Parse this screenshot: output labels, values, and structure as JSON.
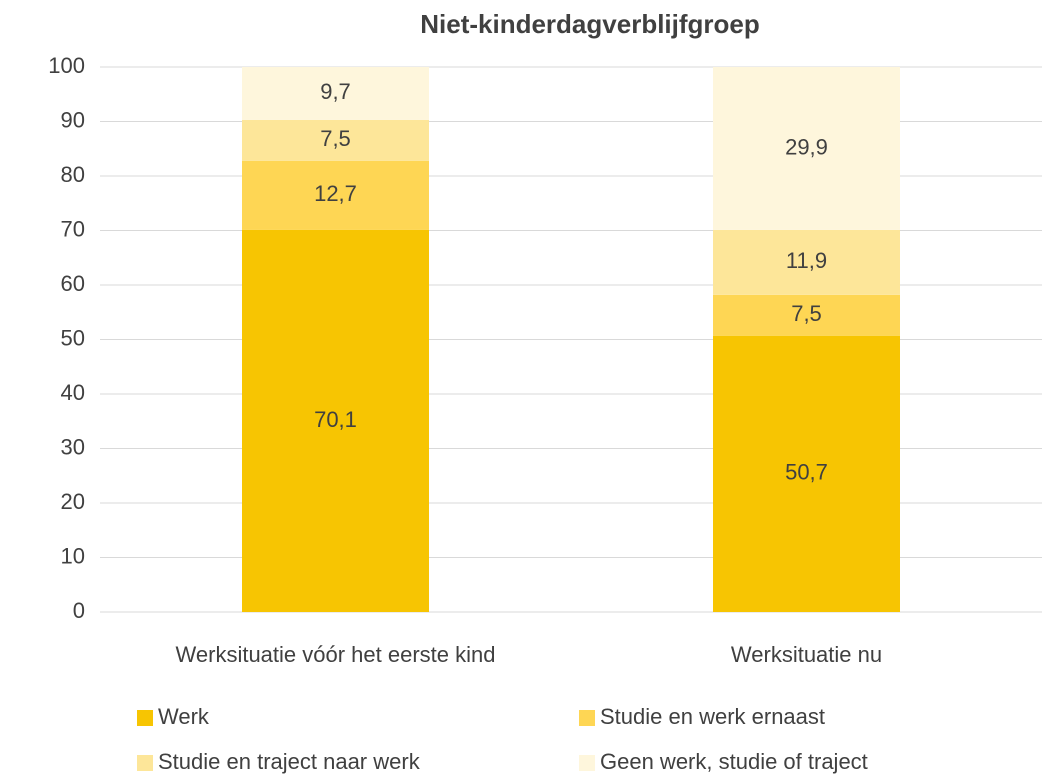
{
  "chart_data": {
    "type": "stacked_bar",
    "title": "Niet-kinderdagverblijfgroep",
    "categories": [
      "Werksituatie vóór het eerste kind",
      "Werksituatie nu"
    ],
    "series": [
      {
        "name": "Werk",
        "color": "#f7c502",
        "values": [
          70.1,
          50.7
        ],
        "value_labels": [
          "70,1",
          "50,7"
        ]
      },
      {
        "name": "Studie en werk ernaast",
        "color": "#fed654",
        "values": [
          12.7,
          7.5
        ],
        "value_labels": [
          "12,7",
          "7,5"
        ]
      },
      {
        "name": "Studie en traject naar werk",
        "color": "#fde699",
        "values": [
          7.5,
          11.9
        ],
        "value_labels": [
          "7,5",
          "11,9"
        ]
      },
      {
        "name": "Geen werk, studie of traject",
        "color": "#fef6dc",
        "values": [
          9.7,
          29.9
        ],
        "value_labels": [
          "9,7",
          "29,9"
        ]
      }
    ],
    "ylim": [
      0,
      100
    ],
    "yticks": [
      0,
      10,
      20,
      30,
      40,
      50,
      60,
      70,
      80,
      90,
      100
    ],
    "grid": true,
    "legend": "bottom"
  }
}
